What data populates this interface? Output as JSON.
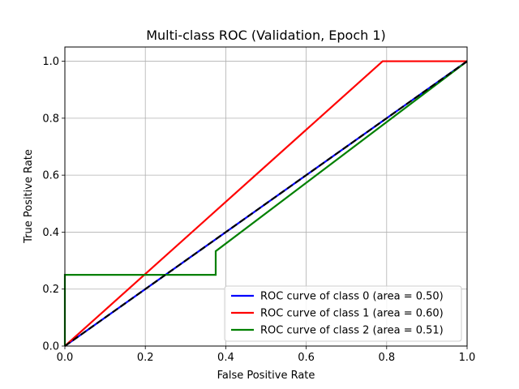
{
  "chart_data": {
    "type": "line",
    "title": "Multi-class ROC (Validation, Epoch 1)",
    "xlabel": "False Positive Rate",
    "ylabel": "True Positive Rate",
    "xlim": [
      0,
      1
    ],
    "ylim": [
      0,
      1.05
    ],
    "grid": true,
    "legend_position": "bottom-right",
    "x_ticks": [
      "0.0",
      "0.2",
      "0.4",
      "0.6",
      "0.8",
      "1.0"
    ],
    "y_ticks": [
      "0.0",
      "0.2",
      "0.4",
      "0.6",
      "0.8",
      "1.0"
    ],
    "series": [
      {
        "name": "ROC curve of class 0 (area = 0.50)",
        "color": "#0000ff",
        "x": [
          0,
          1
        ],
        "y": [
          0,
          1
        ]
      },
      {
        "name": "ROC curve of class 1 (area = 0.60)",
        "color": "#ff0000",
        "x": [
          0,
          0.79,
          1
        ],
        "y": [
          0,
          1,
          1
        ]
      },
      {
        "name": "ROC curve of class 2 (area = 0.51)",
        "color": "#008000",
        "x": [
          0,
          0,
          0.375,
          0.375,
          1
        ],
        "y": [
          0,
          0.25,
          0.25,
          0.333,
          1
        ]
      }
    ],
    "reference_line": {
      "color": "#000000",
      "style": "dashed",
      "x": [
        0,
        1
      ],
      "y": [
        0,
        1
      ]
    }
  }
}
